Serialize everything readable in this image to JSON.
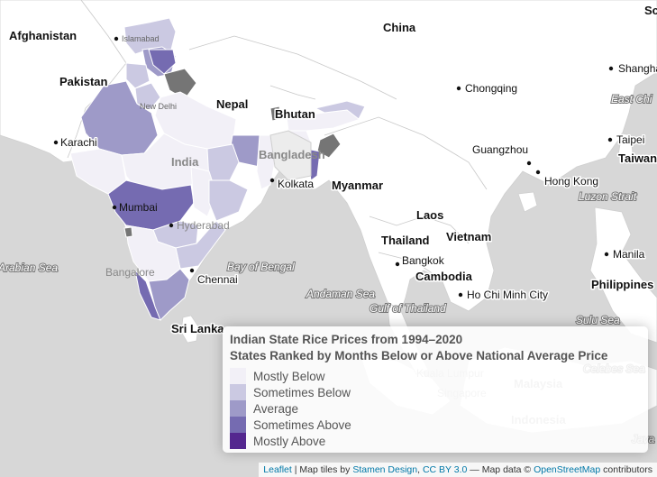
{
  "map": {
    "countries": [
      "Afghanistan",
      "Pakistan",
      "China",
      "Nepal",
      "Bhutan",
      "India",
      "Bangladesh",
      "Myanmar",
      "Laos",
      "Vietnam",
      "Thailand",
      "Cambodia",
      "Sri Lanka",
      "Philippines",
      "Malaysia",
      "Indonesia",
      "Taiwan",
      "Sc"
    ],
    "cities": [
      "Islamabad",
      "New Delhi",
      "Karachi",
      "Mumbai",
      "Hyderabad",
      "Bangalore",
      "Chennai",
      "Kolkata",
      "Chongqing",
      "Guangzhou",
      "Hong Kong",
      "Shanghai",
      "Taipei",
      "Manila",
      "Bangkok",
      "Ho Chi Minh City",
      "Kuala Lumpur",
      "Singapore"
    ],
    "seas": [
      "Arabian Sea",
      "Bay of Bengal",
      "Andaman Sea",
      "Gulf of Thailand",
      "Luzon Strait",
      "East Chi",
      "Sulu Sea",
      "Celebes Sea",
      "Java"
    ],
    "category_colors": {
      "mostly_below": "#f2f0f7",
      "sometimes_below": "#cbc9e2",
      "average": "#9e9ac8",
      "sometimes_above": "#756bb1",
      "mostly_above": "#54278f",
      "no_data": "#757575"
    }
  },
  "legend": {
    "title_line1": "Indian State Rice Prices from 1994–2020",
    "title_line2": "States Ranked by Months Below or Above National Average Price",
    "items": [
      {
        "label": "Mostly Below",
        "color": "#f2f0f7"
      },
      {
        "label": "Sometimes Below",
        "color": "#cbc9e2"
      },
      {
        "label": "Average",
        "color": "#9e9ac8"
      },
      {
        "label": "Sometimes Above",
        "color": "#756bb1"
      },
      {
        "label": "Mostly Above",
        "color": "#54278f"
      }
    ]
  },
  "attribution": {
    "leaflet": "Leaflet",
    "sep1": " | Map tiles by ",
    "stamen": "Stamen Design",
    "sep2": ", ",
    "license": "CC BY 3.0",
    "sep3": " — Map data © ",
    "osm": "OpenStreetMap",
    "sep4": " contributors"
  }
}
